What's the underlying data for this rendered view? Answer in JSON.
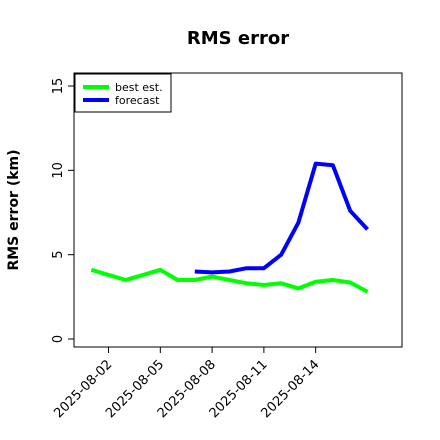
{
  "chart_data": {
    "type": "line",
    "title": "RMS error",
    "xlabel": "",
    "ylabel": "RMS error (km)",
    "x_ticks": [
      "2025-08-02",
      "2025-08-05",
      "2025-08-08",
      "2025-08-11",
      "2025-08-14"
    ],
    "y_ticks": [
      0,
      5,
      10,
      15
    ],
    "ylim": [
      0,
      15
    ],
    "xlim": [
      "2025-07-31",
      "2025-08-19"
    ],
    "grid": false,
    "legend_position": "top-left",
    "series": [
      {
        "name": "best est.",
        "color": "#00ff00",
        "x": [
          "2025-08-01",
          "2025-08-02",
          "2025-08-03",
          "2025-08-04",
          "2025-08-05",
          "2025-08-06",
          "2025-08-07",
          "2025-08-08",
          "2025-08-09",
          "2025-08-10",
          "2025-08-11",
          "2025-08-12",
          "2025-08-13",
          "2025-08-14",
          "2025-08-15",
          "2025-08-16",
          "2025-08-17"
        ],
        "values": [
          4.1,
          3.8,
          3.5,
          3.8,
          4.1,
          3.5,
          3.5,
          3.7,
          3.5,
          3.3,
          3.2,
          3.3,
          3.0,
          3.4,
          3.5,
          3.35,
          2.8
        ]
      },
      {
        "name": "forecast",
        "color": "#0000ff",
        "x": [
          "2025-08-07",
          "2025-08-08",
          "2025-08-09",
          "2025-08-10",
          "2025-08-11",
          "2025-08-12",
          "2025-08-13",
          "2025-08-14",
          "2025-08-15",
          "2025-08-16",
          "2025-08-17"
        ],
        "values": [
          4.0,
          3.95,
          4.0,
          4.2,
          4.2,
          5.0,
          6.9,
          10.4,
          10.3,
          7.6,
          6.5
        ]
      }
    ]
  }
}
